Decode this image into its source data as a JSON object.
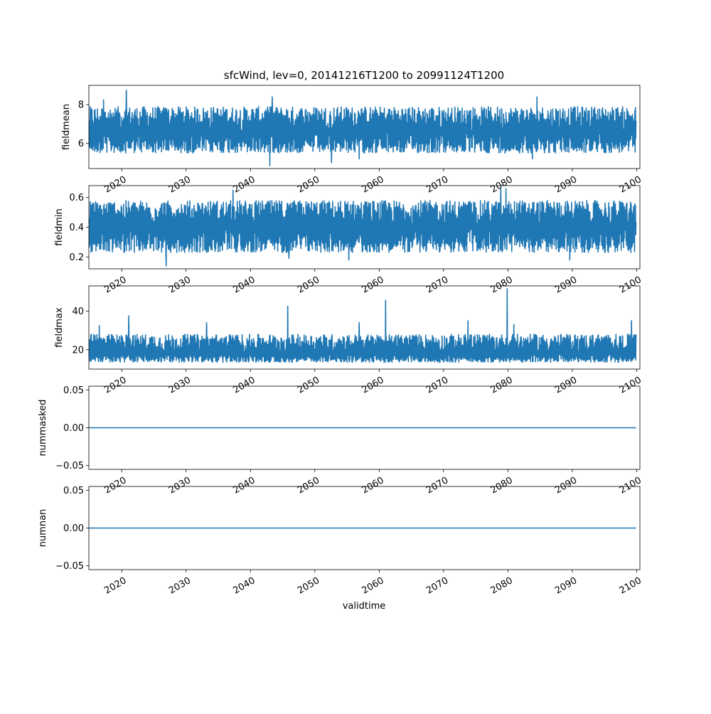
{
  "chart_data": {
    "type": "line",
    "title": "sfcWind, lev=0, 20141216T1200 to 20991124T1200",
    "xlabel": "validtime",
    "xlim": [
      2014.9,
      2100.5
    ],
    "x_ticks": [
      2020,
      2030,
      2040,
      2050,
      2060,
      2070,
      2080,
      2090,
      2100
    ],
    "x_tick_labels": [
      "2020",
      "2030",
      "2040",
      "2050",
      "2060",
      "2070",
      "2080",
      "2090",
      "2100"
    ],
    "series_color": "#1f77b4",
    "grid": false,
    "panels": [
      {
        "ylabel": "fieldmean",
        "ylim": [
          4.7,
          9.0
        ],
        "y_ticks": [
          6,
          8
        ],
        "y_tick_labels": [
          "6",
          "8"
        ],
        "series": {
          "x_start": 2014.96,
          "x_end": 2099.9,
          "band_low": 5.5,
          "band_high": 7.9,
          "center": 6.6,
          "extremes": [
            [
              2020.7,
              8.75
            ],
            [
              2043.0,
              4.85
            ],
            [
              2017.2,
              8.25
            ],
            [
              2084.5,
              8.4
            ],
            [
              2043.4,
              8.4
            ],
            [
              2052.6,
              5.0
            ],
            [
              2083.8,
              5.2
            ],
            [
              2056.9,
              5.2
            ]
          ]
        }
      },
      {
        "ylabel": "fieldmin",
        "ylim": [
          0.12,
          0.68
        ],
        "y_ticks": [
          0.2,
          0.4,
          0.6
        ],
        "y_tick_labels": [
          "0.2",
          "0.4",
          "0.6"
        ],
        "series": {
          "x_start": 2014.96,
          "x_end": 2099.9,
          "band_low": 0.23,
          "band_high": 0.58,
          "center": 0.4,
          "extremes": [
            [
              2026.9,
              0.14
            ],
            [
              2037.3,
              0.65
            ],
            [
              2078.9,
              0.66
            ],
            [
              2079.7,
              0.66
            ],
            [
              2055.3,
              0.18
            ],
            [
              2089.6,
              0.18
            ],
            [
              2046.0,
              0.19
            ]
          ]
        }
      },
      {
        "ylabel": "fieldmax",
        "ylim": [
          10,
          53
        ],
        "y_ticks": [
          20,
          40
        ],
        "y_tick_labels": [
          "20",
          "40"
        ],
        "series": {
          "x_start": 2014.96,
          "x_end": 2099.9,
          "band_low": 13.5,
          "band_high": 28.0,
          "center": 18.0,
          "extremes": [
            [
              2079.9,
              51.5
            ],
            [
              2061.0,
              45.5
            ],
            [
              2045.8,
              42.5
            ],
            [
              2021.1,
              37.5
            ],
            [
              2073.8,
              35.0
            ],
            [
              2099.2,
              35.0
            ],
            [
              2033.2,
              34.0
            ],
            [
              2056.9,
              34.0
            ],
            [
              2016.5,
              32.5
            ],
            [
              2080.9,
              33.0
            ]
          ]
        }
      },
      {
        "ylabel": "nummasked",
        "ylim": [
          -0.055,
          0.055
        ],
        "y_ticks": [
          -0.05,
          0.0,
          0.05
        ],
        "y_tick_labels": [
          "−0.05",
          "0.00",
          "0.05"
        ],
        "series": {
          "x_start": 2014.96,
          "x_end": 2099.9,
          "constant": 0.0
        }
      },
      {
        "ylabel": "numnan",
        "ylim": [
          -0.055,
          0.055
        ],
        "y_ticks": [
          -0.05,
          0.0,
          0.05
        ],
        "y_tick_labels": [
          "−0.05",
          "0.00",
          "0.05"
        ],
        "series": {
          "x_start": 2014.96,
          "x_end": 2099.9,
          "constant": 0.0
        }
      }
    ]
  }
}
